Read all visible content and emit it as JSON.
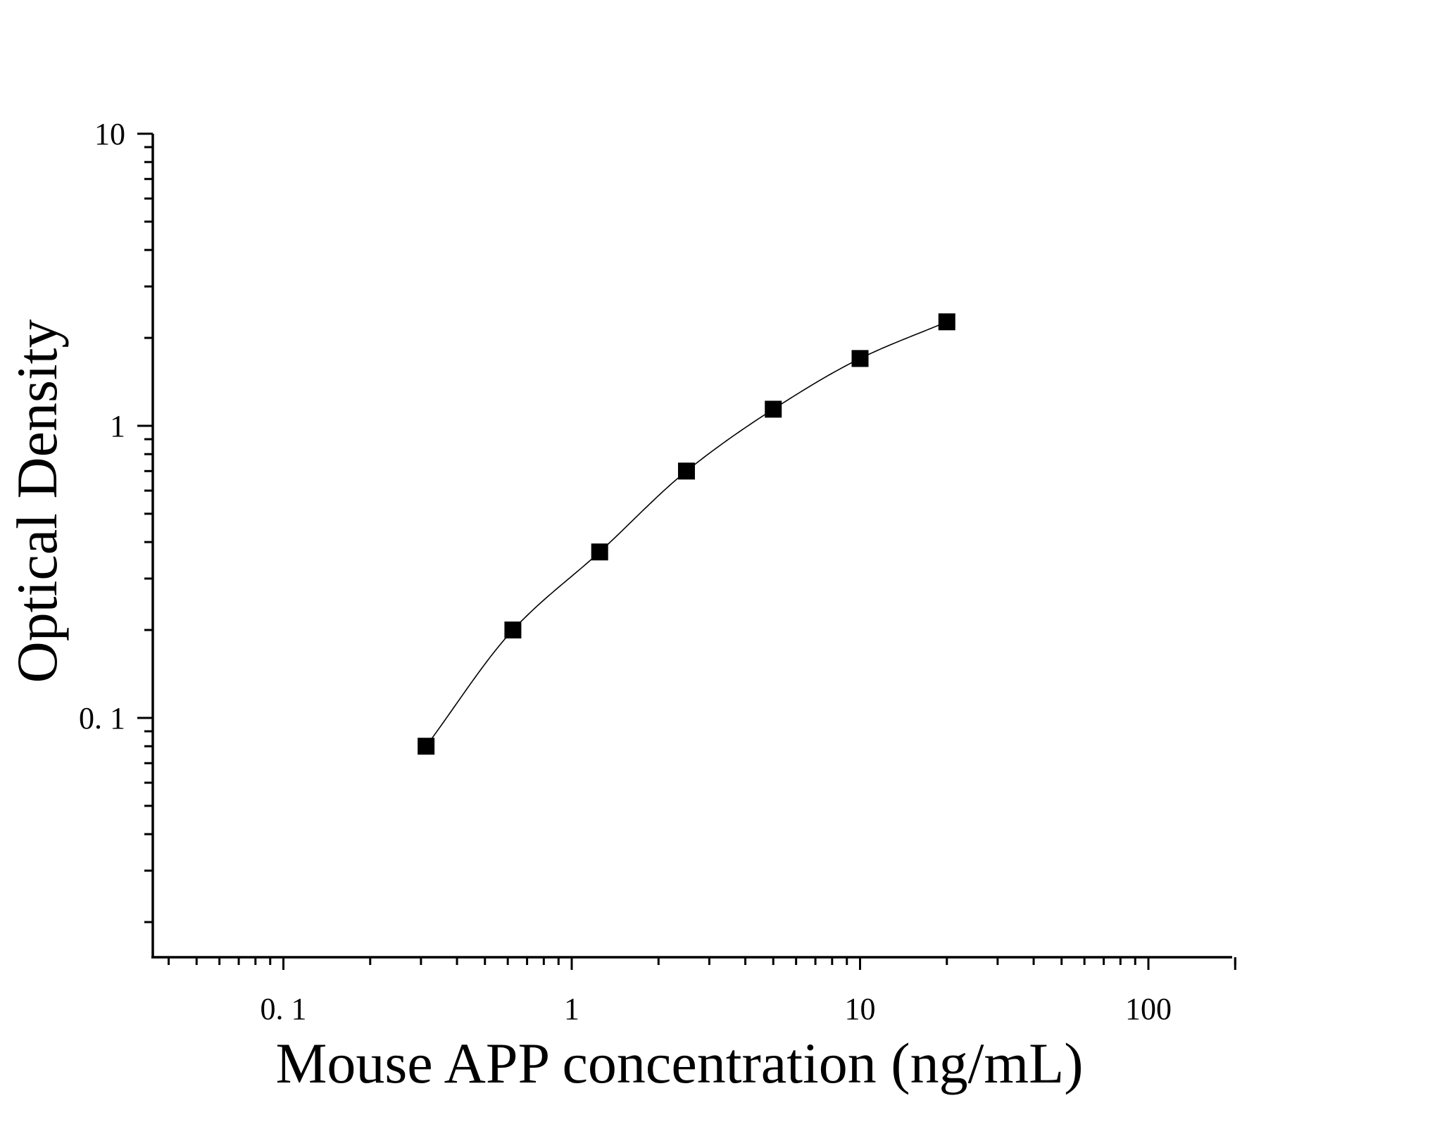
{
  "chart_data": {
    "type": "scatter",
    "title": "",
    "xlabel": "Mouse APP concentration (ng/mL)",
    "ylabel": "Optical Density",
    "x_scale": "log",
    "y_scale": "log",
    "xlim": [
      0.036,
      200
    ],
    "ylim": [
      0.017,
      10
    ],
    "x_ticks": [
      {
        "value": 0.1,
        "label": "0. 1"
      },
      {
        "value": 1,
        "label": "1"
      },
      {
        "value": 10,
        "label": "10"
      },
      {
        "value": 100,
        "label": "100"
      }
    ],
    "y_ticks": [
      {
        "value": 10,
        "label": "10"
      },
      {
        "value": 1,
        "label": "1"
      },
      {
        "value": 0.1,
        "label": "0. 1"
      }
    ],
    "grid": false,
    "legend": false,
    "series": [
      {
        "marker": "square",
        "color": "#000000",
        "points": [
          {
            "x": 0.3125,
            "y": 0.08
          },
          {
            "x": 0.625,
            "y": 0.2
          },
          {
            "x": 1.25,
            "y": 0.37
          },
          {
            "x": 2.5,
            "y": 0.7
          },
          {
            "x": 5,
            "y": 1.14
          },
          {
            "x": 10,
            "y": 1.7
          },
          {
            "x": 20,
            "y": 2.27
          }
        ],
        "fit_curve": true
      }
    ]
  }
}
